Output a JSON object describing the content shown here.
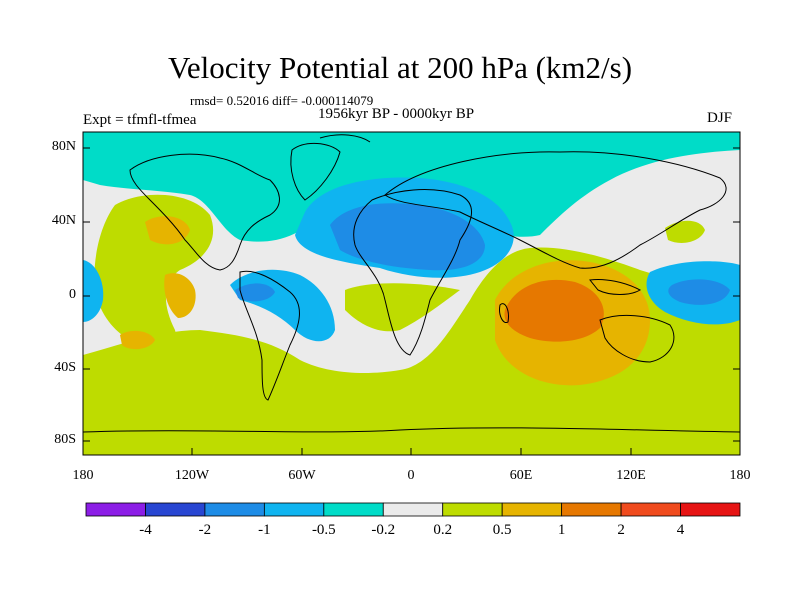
{
  "title": "Velocity Potential at 200 hPa (km2/s)",
  "stats": "rmsd= 0.52016 diff= -0.000114079",
  "experiment": "Expt = tfmfl-tfmea",
  "period": "1956kyr BP - 0000kyr BP",
  "season": "DJF",
  "lat_labels": [
    "80N",
    "40N",
    "0",
    "40S",
    "80S"
  ],
  "lon_labels": [
    "180",
    "120W",
    "60W",
    "0",
    "60E",
    "120E",
    "180"
  ],
  "colorbar": {
    "colors": [
      "#8c1ee6",
      "#2846d2",
      "#1e8ce6",
      "#0fb4f0",
      "#00dcc8",
      "#ebebeb",
      "#bedc00",
      "#e6b400",
      "#e67800",
      "#f04b1e",
      "#e61414"
    ],
    "labels": [
      "-4",
      "-2",
      "-1",
      "-0.5",
      "-0.2",
      "0.2",
      "0.5",
      "1",
      "2",
      "4"
    ]
  },
  "colors": {
    "neutral": "#ebebeb",
    "cyan": "#00dcc8",
    "lightblue": "#0fb4f0",
    "blue": "#1e8ce6",
    "yellowgreen": "#bedc00",
    "gold": "#e6b400",
    "orange": "#e67800"
  }
}
